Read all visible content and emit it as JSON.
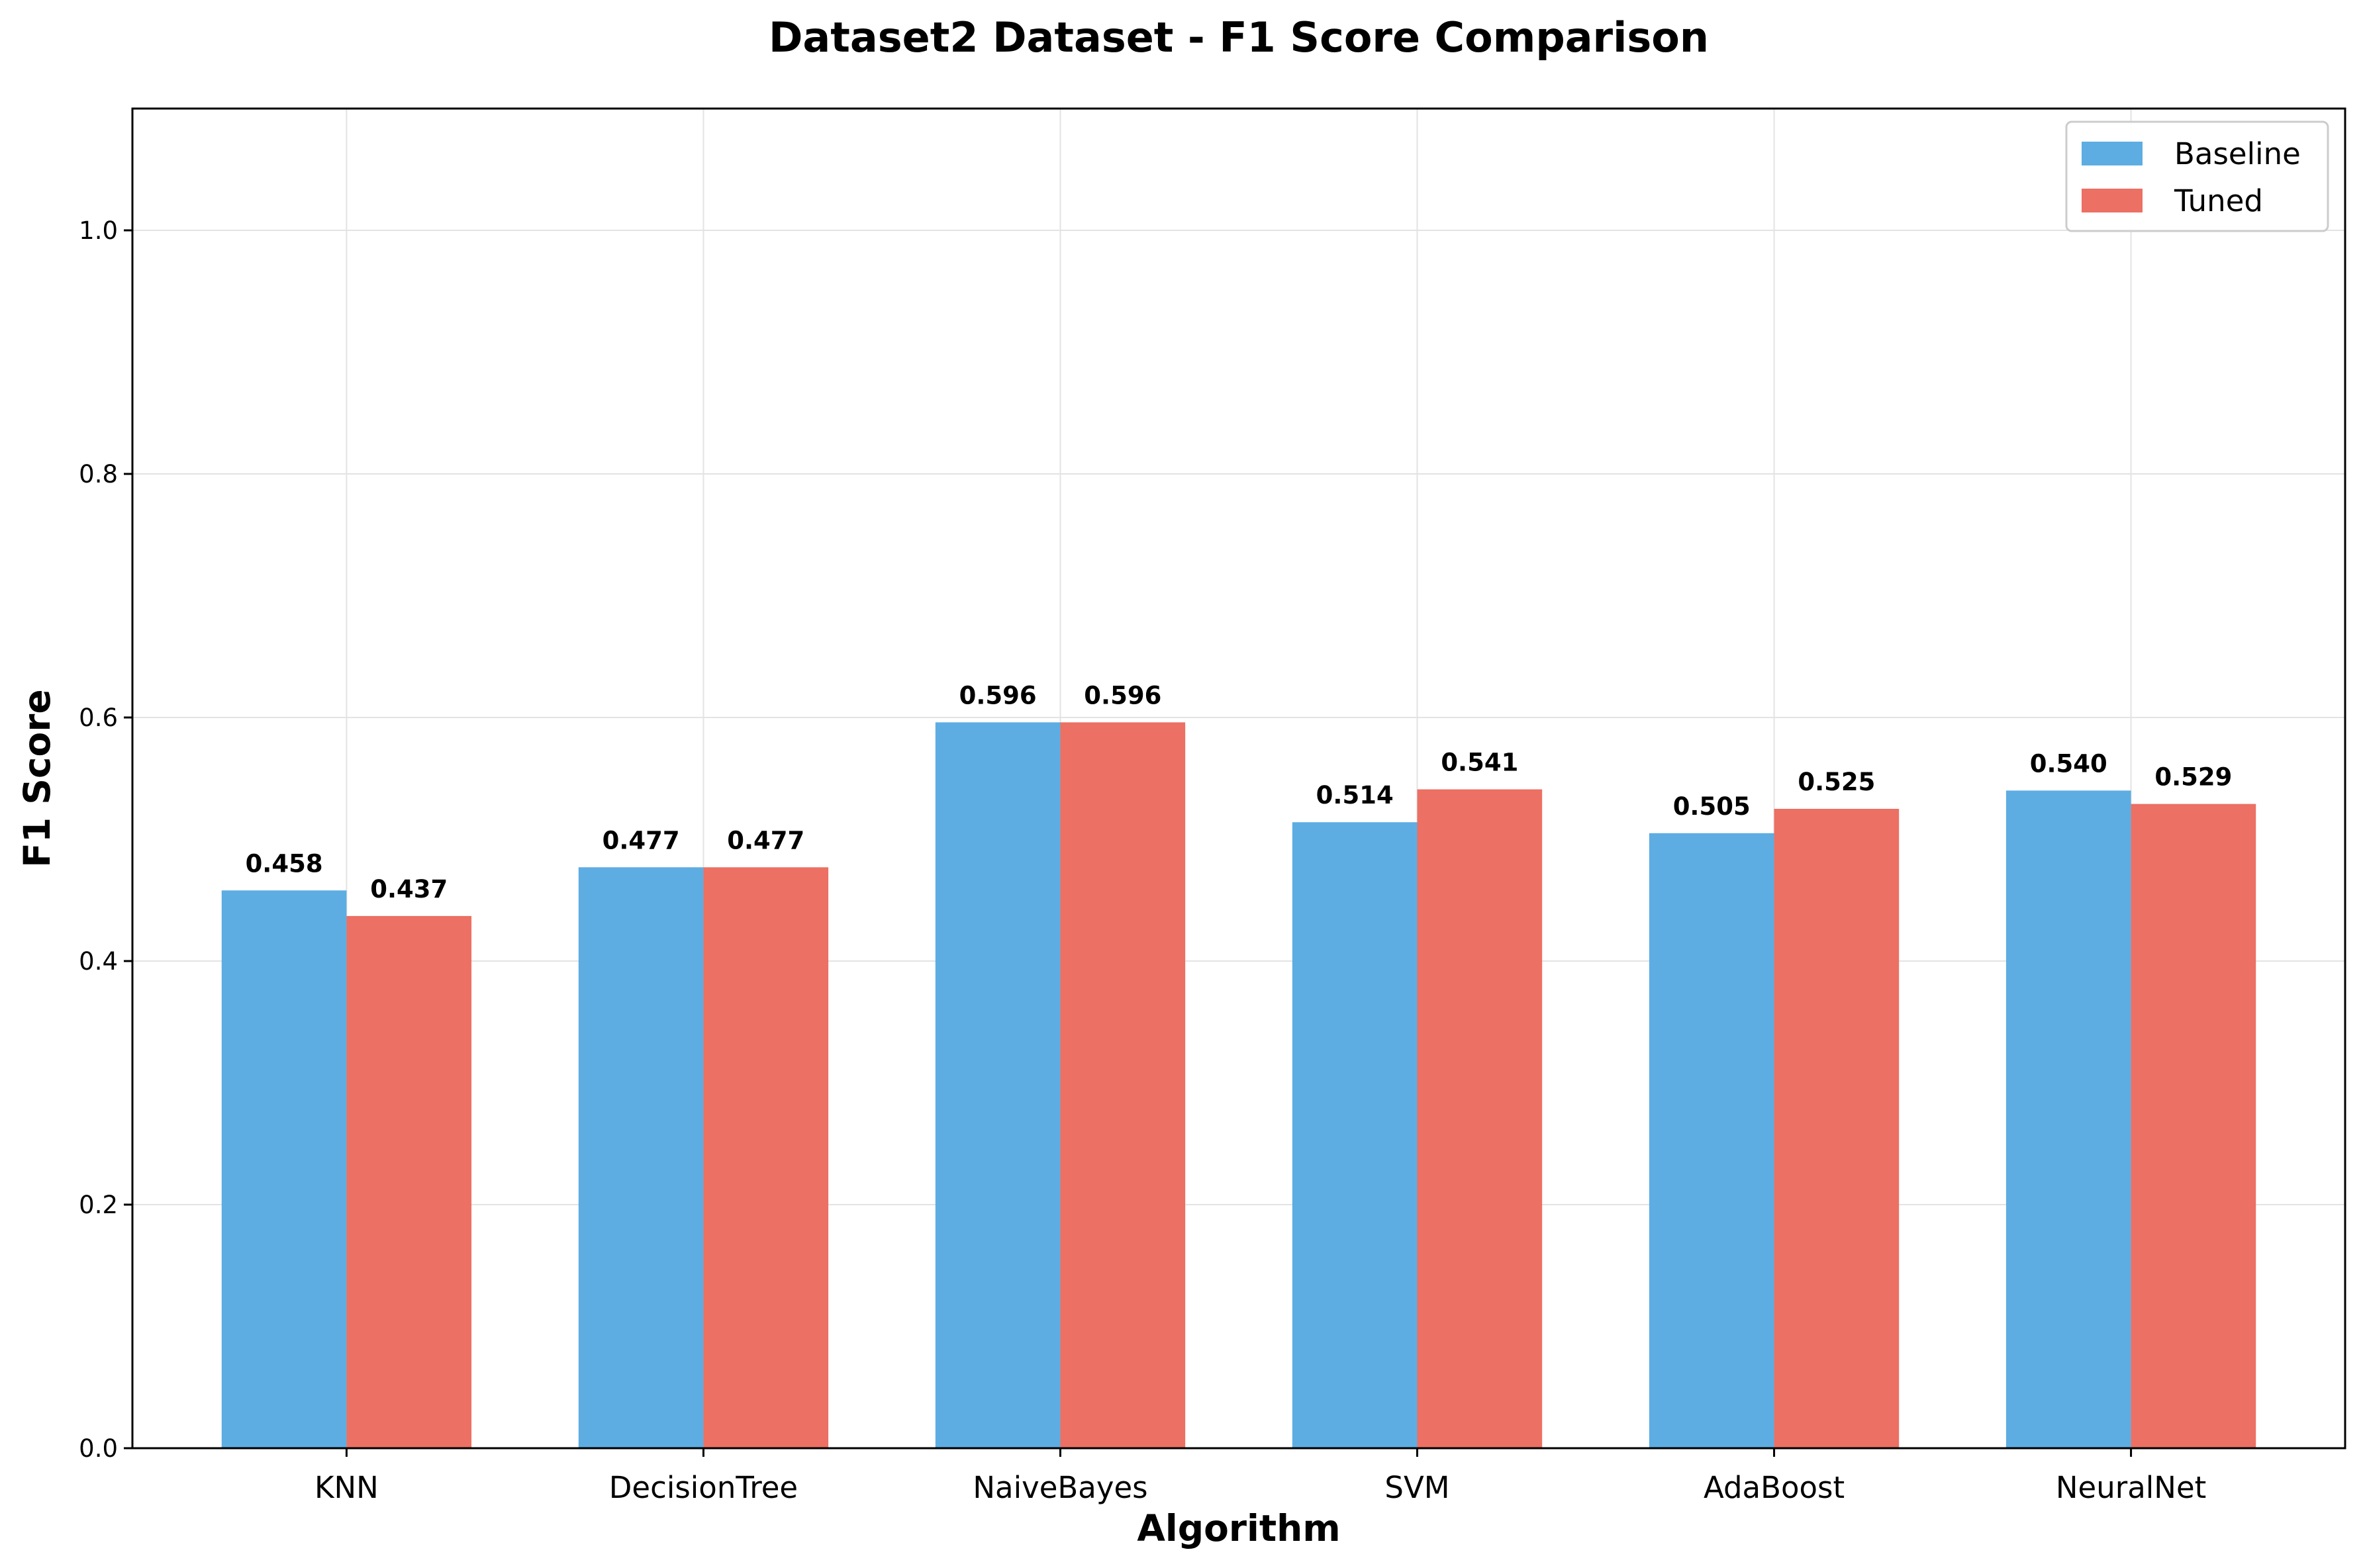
{
  "chart_data": {
    "type": "bar",
    "title": "Dataset2 Dataset - F1 Score Comparison",
    "xlabel": "Algorithm",
    "ylabel": "F1 Score",
    "categories": [
      "KNN",
      "DecisionTree",
      "NaiveBayes",
      "SVM",
      "AdaBoost",
      "NeuralNet"
    ],
    "series": [
      {
        "name": "Baseline",
        "color": "#5DADE2",
        "values": [
          0.458,
          0.477,
          0.596,
          0.514,
          0.505,
          0.54
        ],
        "labels": [
          "0.458",
          "0.477",
          "0.596",
          "0.514",
          "0.505",
          "0.540"
        ]
      },
      {
        "name": "Tuned",
        "color": "#EC7063",
        "values": [
          0.437,
          0.477,
          0.596,
          0.541,
          0.525,
          0.529
        ],
        "labels": [
          "0.437",
          "0.477",
          "0.596",
          "0.541",
          "0.525",
          "0.529"
        ]
      }
    ],
    "ylim": [
      0,
      1.1
    ],
    "yticks": [
      0.0,
      0.2,
      0.4,
      0.6,
      0.8,
      1.0
    ],
    "ytick_labels": [
      "0.0",
      "0.2",
      "0.4",
      "0.6",
      "0.8",
      "1.0"
    ],
    "grid": true,
    "legend_position": "top-right"
  }
}
